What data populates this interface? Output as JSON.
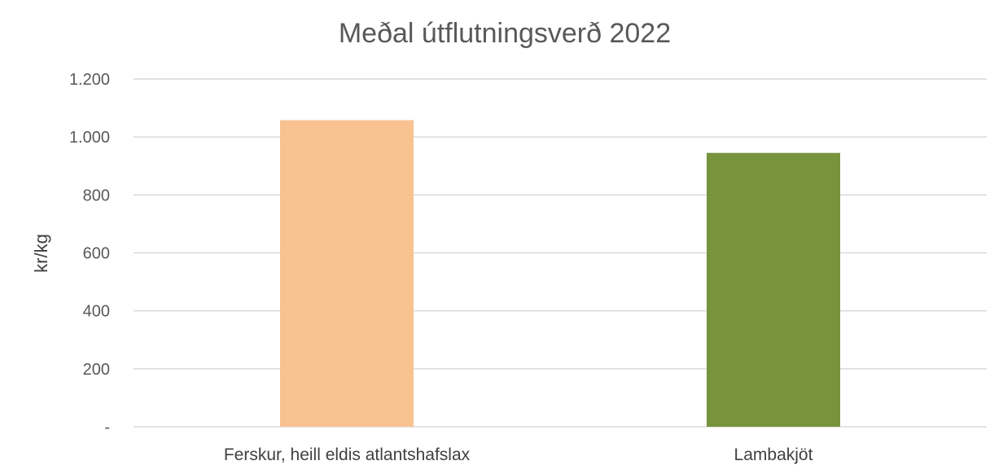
{
  "chart_data": {
    "type": "bar",
    "title": "Meðal útflutningsverð 2022",
    "xlabel": "",
    "ylabel": "kr/kg",
    "categories": [
      "Ferskur, heill eldis atlantshafslax",
      "Lambakjöt"
    ],
    "values": [
      1058,
      945
    ],
    "colors": [
      "#f8c291",
      "#77933c"
    ],
    "ylim": [
      0,
      1200
    ],
    "yticks": [
      0,
      200,
      400,
      600,
      800,
      1000,
      1200
    ],
    "ytick_labels": [
      "-",
      "200",
      "400",
      "600",
      "800",
      "1.000",
      "1.200"
    ],
    "grid": true,
    "legend": "none"
  }
}
